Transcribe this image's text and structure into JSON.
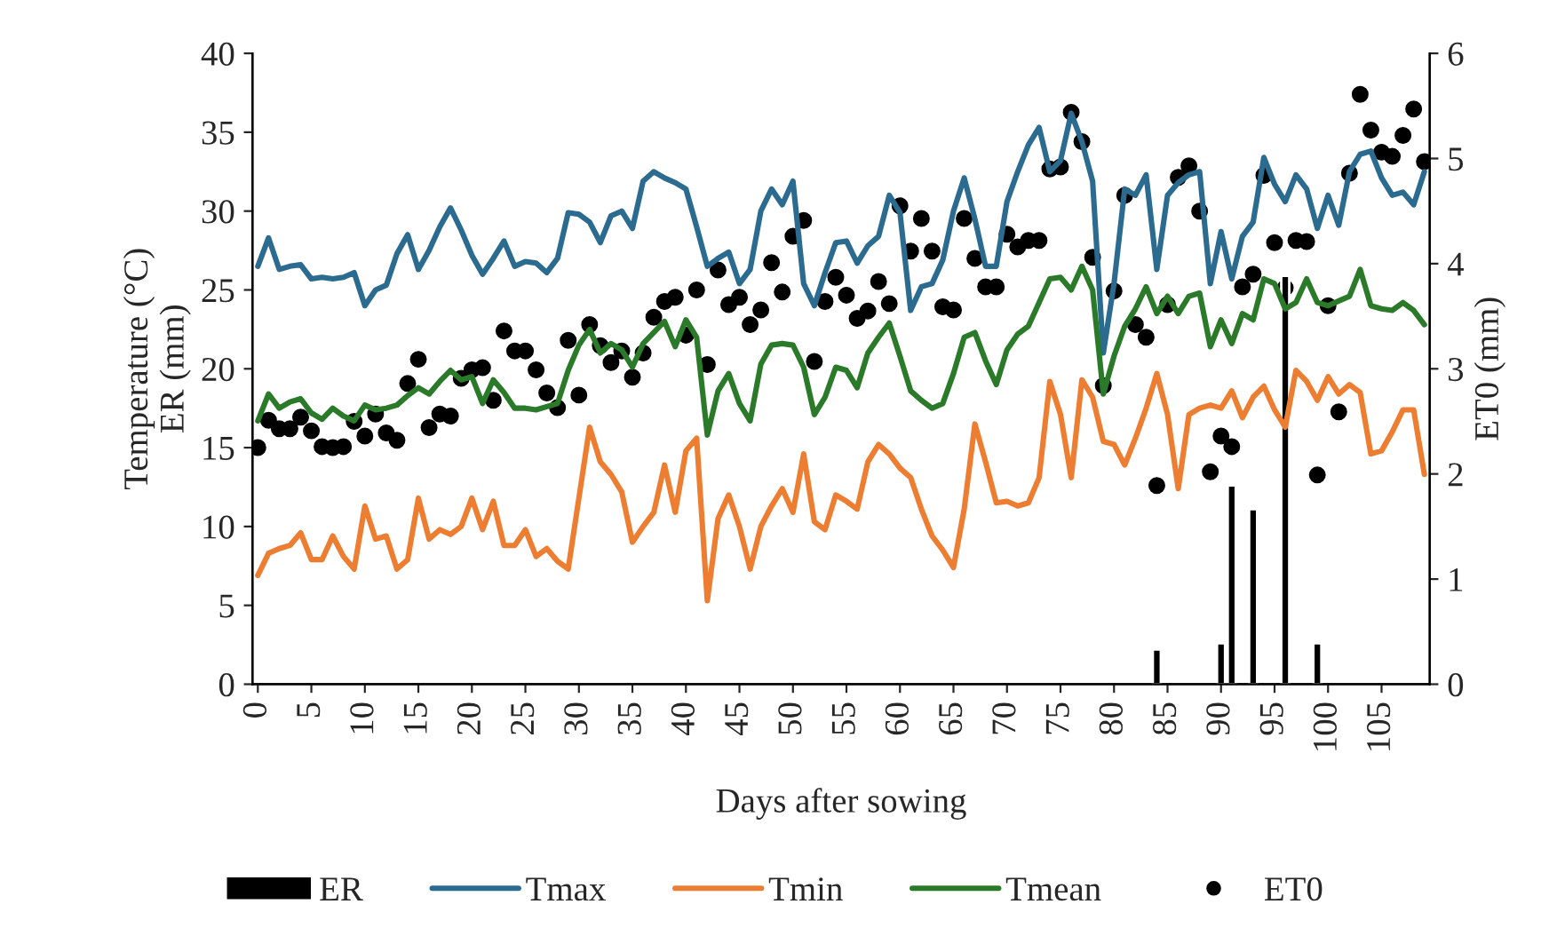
{
  "chart_data": {
    "type": "line",
    "xlabel": "Days after sowing",
    "ylabel": "Temperature (°C)\nER (mm)",
    "y2label": "ET0 (mm)",
    "x": [
      0,
      1,
      2,
      3,
      4,
      5,
      6,
      7,
      8,
      9,
      10,
      11,
      12,
      13,
      14,
      15,
      16,
      17,
      18,
      19,
      20,
      21,
      22,
      23,
      24,
      25,
      26,
      27,
      28,
      29,
      30,
      31,
      32,
      33,
      34,
      35,
      36,
      37,
      38,
      39,
      40,
      41,
      42,
      43,
      44,
      45,
      46,
      47,
      48,
      49,
      50,
      51,
      52,
      53,
      54,
      55,
      56,
      57,
      58,
      59,
      60,
      61,
      62,
      63,
      64,
      65,
      66,
      67,
      68,
      69,
      70,
      71,
      72,
      73,
      74,
      75,
      76,
      77,
      78,
      79,
      80,
      81,
      82,
      83,
      84,
      85,
      86,
      87,
      88,
      89,
      90,
      91,
      92,
      93,
      94,
      95,
      96,
      97,
      98,
      99,
      100,
      101,
      102,
      103,
      104,
      105,
      106,
      107,
      108,
      109
    ],
    "xlim": [
      -0.5,
      109.5
    ],
    "xticks": [
      0,
      5,
      10,
      15,
      20,
      25,
      30,
      35,
      40,
      45,
      50,
      55,
      60,
      65,
      70,
      75,
      80,
      85,
      90,
      95,
      100,
      105
    ],
    "ylim": [
      0,
      40
    ],
    "yticks": [
      0,
      5,
      10,
      15,
      20,
      25,
      30,
      35,
      40
    ],
    "y2lim": [
      0,
      6
    ],
    "y2ticks": [
      0,
      1,
      2,
      3,
      4,
      5,
      6
    ],
    "grid": false,
    "legend": "bottom",
    "series": [
      {
        "name": "ER",
        "type": "bar",
        "color": "#000000",
        "x": [
          84,
          90,
          91,
          93,
          96,
          99
        ],
        "values": [
          2.2,
          2.6,
          12.6,
          11.1,
          25.9,
          2.6
        ]
      },
      {
        "name": "Tmax",
        "color": "#2a6b8f",
        "values": [
          26.5,
          28.3,
          26.3,
          26.5,
          26.6,
          25.7,
          25.8,
          25.7,
          25.8,
          26.1,
          24.0,
          25.0,
          25.3,
          27.3,
          28.5,
          26.3,
          27.5,
          29.0,
          30.2,
          28.8,
          27.2,
          26.0,
          27.0,
          28.1,
          26.5,
          26.8,
          26.7,
          26.1,
          27.0,
          29.9,
          29.8,
          29.3,
          28.0,
          29.7,
          30.0,
          28.9,
          31.9,
          32.5,
          32.1,
          31.8,
          31.4,
          29.0,
          26.5,
          27.0,
          27.4,
          25.4,
          26.3,
          30.0,
          31.4,
          30.4,
          31.9,
          25.4,
          24.0,
          26.1,
          28.0,
          28.1,
          26.7,
          27.8,
          28.4,
          31.0,
          29.9,
          23.7,
          25.2,
          25.4,
          26.9,
          30.0,
          32.1,
          29.5,
          26.5,
          26.5,
          30.6,
          32.5,
          34.2,
          35.3,
          32.5,
          33.2,
          36.2,
          34.4,
          31.9,
          21.0,
          25.4,
          31.4,
          31.0,
          32.3,
          26.3,
          31.0,
          31.8,
          32.3,
          32.5,
          25.4,
          28.7,
          25.7,
          28.4,
          29.3,
          33.4,
          31.7,
          30.6,
          32.3,
          31.4,
          28.9,
          31.0,
          29.1,
          32.5,
          33.6,
          33.8,
          32.1,
          31.0,
          31.2,
          30.4,
          32.5
        ]
      },
      {
        "name": "Tmin",
        "color": "#ed7d31",
        "values": [
          6.9,
          8.3,
          8.6,
          8.8,
          9.6,
          7.9,
          7.9,
          9.4,
          8.1,
          7.3,
          11.3,
          9.2,
          9.4,
          7.3,
          7.9,
          11.8,
          9.2,
          9.8,
          9.5,
          10.0,
          11.8,
          9.8,
          11.6,
          8.8,
          8.8,
          9.8,
          8.1,
          8.6,
          7.8,
          7.3,
          11.8,
          16.3,
          14.1,
          13.3,
          12.2,
          9.0,
          10.0,
          10.9,
          13.9,
          10.9,
          14.8,
          15.6,
          5.3,
          10.5,
          12.0,
          10.0,
          7.3,
          10.0,
          11.3,
          12.4,
          10.9,
          14.6,
          10.3,
          9.8,
          12.0,
          11.6,
          11.1,
          14.1,
          15.2,
          14.6,
          13.7,
          13.1,
          11.1,
          9.4,
          8.5,
          7.4,
          11.1,
          16.5,
          14.1,
          11.5,
          11.6,
          11.3,
          11.5,
          13.1,
          19.2,
          17.1,
          13.1,
          19.3,
          18.2,
          15.4,
          15.2,
          13.9,
          15.6,
          17.5,
          19.7,
          17.1,
          12.4,
          17.1,
          17.5,
          17.7,
          17.5,
          18.6,
          16.9,
          18.2,
          18.9,
          17.4,
          16.3,
          19.9,
          19.2,
          18.0,
          19.5,
          18.4,
          19.0,
          18.5,
          14.6,
          14.8,
          16.0,
          17.4,
          17.4,
          13.3
        ]
      },
      {
        "name": "Tmean",
        "color": "#2a7a2a",
        "values": [
          16.7,
          18.4,
          17.5,
          17.9,
          18.1,
          17.2,
          16.8,
          17.5,
          17.0,
          16.7,
          17.7,
          17.4,
          17.5,
          17.7,
          18.3,
          18.8,
          18.4,
          19.2,
          19.9,
          19.3,
          19.5,
          17.8,
          19.3,
          18.5,
          17.5,
          17.5,
          17.4,
          17.6,
          17.8,
          19.9,
          21.5,
          22.5,
          21.0,
          21.6,
          21.2,
          20.1,
          21.6,
          22.3,
          23.0,
          21.4,
          23.1,
          22.0,
          15.8,
          18.6,
          19.7,
          17.8,
          16.7,
          20.3,
          21.5,
          21.6,
          21.5,
          20.1,
          17.1,
          18.2,
          20.1,
          19.9,
          18.8,
          21.0,
          22.0,
          22.9,
          20.8,
          18.6,
          18.0,
          17.5,
          17.8,
          19.7,
          22.0,
          22.3,
          20.5,
          19.0,
          21.2,
          22.2,
          22.7,
          24.2,
          25.7,
          25.8,
          25.0,
          26.5,
          25.0,
          18.4,
          20.8,
          22.7,
          23.8,
          25.2,
          23.5,
          24.6,
          23.5,
          24.6,
          24.8,
          21.4,
          23.1,
          21.6,
          23.5,
          23.1,
          25.7,
          25.4,
          23.8,
          24.2,
          25.7,
          24.2,
          24.0,
          24.3,
          24.6,
          26.3,
          24.0,
          23.8,
          23.7,
          24.2,
          23.7,
          22.8
        ]
      },
      {
        "name": "ET0",
        "type": "scatter",
        "axis": "y2",
        "marker": "circle",
        "color": "#000000",
        "values": [
          2.25,
          2.51,
          2.43,
          2.43,
          2.54,
          2.41,
          2.26,
          2.25,
          2.26,
          2.5,
          2.36,
          2.57,
          2.39,
          2.32,
          2.86,
          3.09,
          2.44,
          2.57,
          2.55,
          2.91,
          2.99,
          3.01,
          2.7,
          3.36,
          3.17,
          3.17,
          2.99,
          2.77,
          2.63,
          3.27,
          2.75,
          3.42,
          3.22,
          3.06,
          3.17,
          2.92,
          3.15,
          3.49,
          3.64,
          3.68,
          3.32,
          3.75,
          3.04,
          3.94,
          3.61,
          3.68,
          3.42,
          3.56,
          4.01,
          3.73,
          4.26,
          4.41,
          3.07,
          3.64,
          3.87,
          3.7,
          3.48,
          3.55,
          3.83,
          3.62,
          4.55,
          4.12,
          4.43,
          4.12,
          3.59,
          3.56,
          4.43,
          4.05,
          3.78,
          3.78,
          4.28,
          4.16,
          4.22,
          4.22,
          4.9,
          4.92,
          5.44,
          5.16,
          4.06,
          2.84,
          3.74,
          4.65,
          3.42,
          3.3,
          1.89,
          3.61,
          4.82,
          4.93,
          4.5,
          2.02,
          2.36,
          2.26,
          3.78,
          3.9,
          4.84,
          4.2,
          3.77,
          4.22,
          4.21,
          1.99,
          3.6,
          2.59,
          4.86,
          5.61,
          5.27,
          5.06,
          5.02,
          5.22,
          5.47,
          4.97
        ]
      }
    ]
  }
}
